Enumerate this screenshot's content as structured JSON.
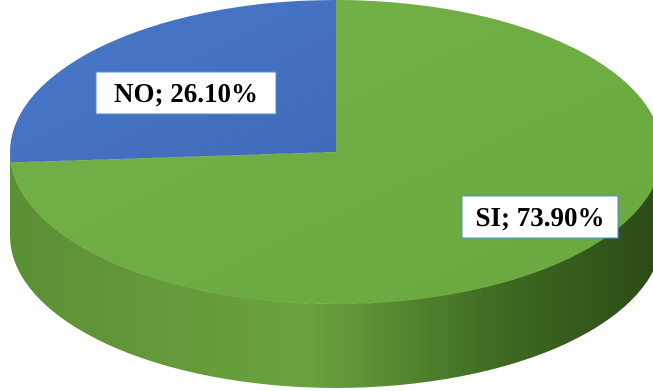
{
  "chart_data": {
    "type": "pie",
    "style": "3d",
    "categories": [
      "NO",
      "SI"
    ],
    "values": [
      26.1,
      73.9
    ],
    "unit": "%",
    "labels": [
      "NO; 26.10%",
      "SI; 73.90%"
    ],
    "colors": [
      "#4472c4",
      "#70ad47"
    ],
    "legend": "none"
  }
}
